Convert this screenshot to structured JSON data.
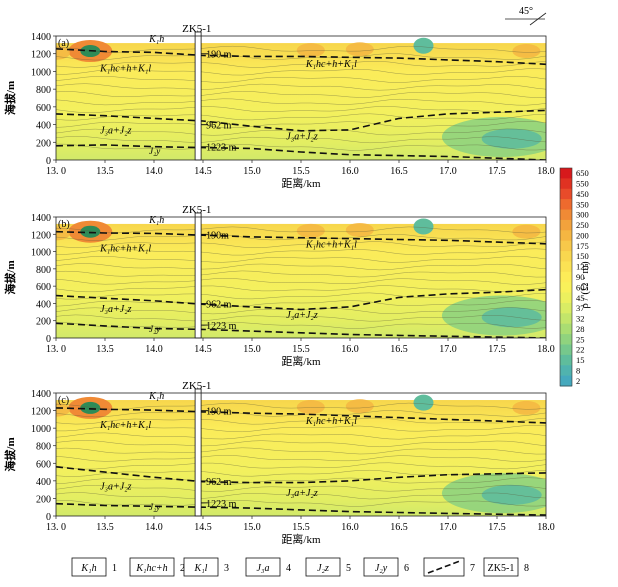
{
  "compass": "45°",
  "y_unit_label": "海拔/m",
  "x_unit_label": "距离/km",
  "borehole": "ZK5-1",
  "chart_data": [
    {
      "type": "heatmap",
      "panel": "(a)",
      "x_ticks": [
        "13. 0",
        "13.5",
        "14.0",
        "14.5",
        "15.0",
        "15.5",
        "16.0",
        "16.5",
        "17.0",
        "17.5",
        "18.0"
      ],
      "y_ticks": [
        "0",
        "200",
        "400",
        "600",
        "800",
        "1000",
        "1200",
        "1400"
      ],
      "xlim": [
        13.0,
        18.0
      ],
      "ylim": [
        0,
        1400
      ],
      "boundaries": [
        {
          "name": "K1h/K1hc+h+K1l",
          "x": [
            13.0,
            13.5,
            14.0,
            14.5,
            15.0,
            15.5,
            16.0,
            16.5,
            17.0,
            17.5,
            18.0
          ],
          "y": [
            1255,
            1225,
            1215,
            1180,
            1170,
            1170,
            1160,
            1150,
            1130,
            1110,
            1080
          ]
        },
        {
          "name": "K1hc+h+K1l/J3a+J2z",
          "x": [
            13.0,
            13.5,
            14.0,
            14.5,
            15.0,
            15.5,
            16.0,
            16.5,
            17.0,
            17.5,
            18.0
          ],
          "y": [
            520,
            500,
            470,
            440,
            380,
            330,
            340,
            470,
            520,
            540,
            560
          ]
        },
        {
          "name": "J2z/J2y",
          "x": [
            13.0,
            13.5,
            14.0,
            14.5,
            15.0,
            15.5,
            16.0,
            16.5,
            17.0,
            17.5,
            18.0
          ],
          "y": [
            160,
            170,
            150,
            140,
            130,
            90,
            60,
            50,
            40,
            20,
            0
          ]
        }
      ],
      "depth_labels": [
        "190 m",
        "962 m",
        "1223 m"
      ],
      "unit_labels": {
        "top": "K₁h",
        "main": "K₁hc+h+K₁l",
        "lower": "J₃a+J₂z",
        "base": "J₂y"
      }
    },
    {
      "type": "heatmap",
      "panel": "(b)",
      "x_ticks": [
        "13. 0",
        "13.5",
        "14.0",
        "14.5",
        "15.0",
        "15.5",
        "16.0",
        "16.5",
        "17.0",
        "17.5",
        "18.0"
      ],
      "y_ticks": [
        "0",
        "200",
        "400",
        "600",
        "800",
        "1000",
        "1200",
        "1400"
      ],
      "xlim": [
        13.0,
        18.0
      ],
      "ylim": [
        0,
        1400
      ],
      "boundaries": [
        {
          "name": "K1h/K1hc+h+K1l",
          "x": [
            13.0,
            13.5,
            14.0,
            14.5,
            15.0,
            15.5,
            16.0,
            16.5,
            17.0,
            17.5,
            18.0
          ],
          "y": [
            1230,
            1215,
            1210,
            1190,
            1170,
            1160,
            1150,
            1140,
            1130,
            1110,
            1090
          ]
        },
        {
          "name": "K1hc+h+K1l/J3a+J2z",
          "x": [
            13.0,
            13.5,
            14.0,
            14.5,
            15.0,
            15.5,
            16.0,
            16.5,
            17.0,
            17.5,
            18.0
          ],
          "y": [
            490,
            460,
            430,
            390,
            360,
            330,
            360,
            470,
            510,
            530,
            560
          ]
        },
        {
          "name": "J2z/J2y",
          "x": [
            13.0,
            13.5,
            14.0,
            14.5,
            15.0,
            15.5,
            16.0,
            16.5,
            17.0,
            17.5,
            18.0
          ],
          "y": [
            170,
            140,
            110,
            100,
            80,
            60,
            40,
            30,
            20,
            10,
            0
          ]
        }
      ],
      "depth_labels": [
        "190m",
        "962 m",
        "1223 m"
      ],
      "unit_labels": {
        "top": "K₁h",
        "main": "K₁hc+h+K₁l",
        "lower": "J₃a+J₂z",
        "base": "J₂y"
      }
    },
    {
      "type": "heatmap",
      "panel": "(c)",
      "x_ticks": [
        "13. 0",
        "13.5",
        "14.0",
        "14.5",
        "15.0",
        "15.5",
        "16.0",
        "16.5",
        "17.0",
        "17.5",
        "18.0"
      ],
      "y_ticks": [
        "0",
        "200",
        "400",
        "600",
        "800",
        "1000",
        "1200",
        "1400"
      ],
      "xlim": [
        13.0,
        18.0
      ],
      "ylim": [
        0,
        1400
      ],
      "boundaries": [
        {
          "name": "K1h/K1hc+h+K1l",
          "x": [
            13.0,
            13.5,
            14.0,
            14.5,
            15.0,
            15.5,
            16.0,
            16.5,
            17.0,
            17.5,
            18.0
          ],
          "y": [
            1230,
            1215,
            1205,
            1185,
            1170,
            1160,
            1140,
            1120,
            1100,
            1080,
            1060
          ]
        },
        {
          "name": "K1hc+h+K1l/J3a+J2z",
          "x": [
            13.0,
            13.5,
            14.0,
            14.5,
            15.0,
            15.5,
            16.0,
            16.5,
            17.0,
            17.5,
            18.0
          ],
          "y": [
            560,
            500,
            440,
            390,
            380,
            380,
            400,
            440,
            470,
            480,
            490
          ]
        },
        {
          "name": "J2z/J2y",
          "x": [
            13.0,
            13.5,
            14.0,
            14.5,
            15.0,
            15.5,
            16.0,
            16.5,
            17.0,
            17.5,
            18.0
          ],
          "y": [
            140,
            120,
            110,
            100,
            90,
            70,
            50,
            40,
            30,
            20,
            10
          ]
        }
      ],
      "depth_labels": [
        "190 m",
        "962 m",
        "1223 m"
      ],
      "unit_labels": {
        "top": "K₁h",
        "main": "K₁hc+h+K₁l",
        "lower": "J₃a+J₂z",
        "base": "J₂y"
      }
    }
  ],
  "colorbar": {
    "label": "ρ / (Ω · m)",
    "ticks": [
      "650",
      "550",
      "450",
      "350",
      "300",
      "250",
      "200",
      "175",
      "150",
      "125",
      "90",
      "60",
      "45",
      "37",
      "32",
      "28",
      "25",
      "22",
      "15",
      "8",
      "2"
    ],
    "colors": [
      "#d7191c",
      "#e03222",
      "#e84b2a",
      "#ee6a2e",
      "#f08a35",
      "#f2a23c",
      "#f5b642",
      "#f7c84a",
      "#f9d74f",
      "#fbe254",
      "#fdec58",
      "#f9f15a",
      "#ecf05e",
      "#d9ec64",
      "#c3e56a",
      "#aadd72",
      "#90d37e",
      "#76c88c",
      "#5fbd9c",
      "#50b3ae",
      "#45a9bd"
    ]
  },
  "legend": [
    {
      "symbol": "K₁h",
      "num": "1"
    },
    {
      "symbol": "K₁hc+h",
      "num": "2"
    },
    {
      "symbol": "K₁l",
      "num": "3"
    },
    {
      "symbol": "J₃a",
      "num": "4"
    },
    {
      "symbol": "J₂z",
      "num": "5"
    },
    {
      "symbol": "J₂y",
      "num": "6"
    },
    {
      "symbol": "line",
      "num": "7"
    },
    {
      "symbol": "ZK5-1",
      "num": "8"
    }
  ]
}
